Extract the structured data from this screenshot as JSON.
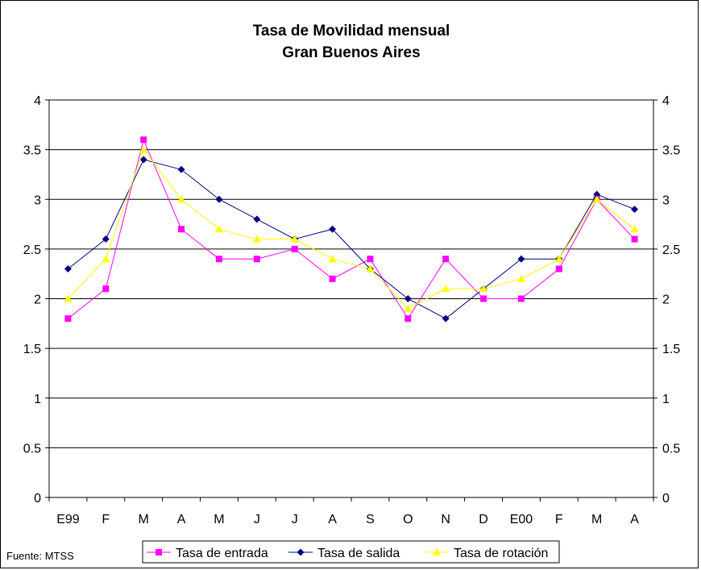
{
  "chart_data": {
    "type": "line",
    "title": "Tasa de Movilidad mensual",
    "subtitle": "Gran Buenos Aires",
    "categories": [
      "E99",
      "F",
      "M",
      "A",
      "M",
      "J",
      "J",
      "A",
      "S",
      "O",
      "N",
      "D",
      "E00",
      "F",
      "M",
      "A"
    ],
    "ylim": [
      0,
      4
    ],
    "yticks": [
      "0",
      "0.5",
      "1",
      "1.5",
      "2",
      "2.5",
      "3",
      "3.5",
      "4"
    ],
    "secondary_y_axis": true,
    "grid": true,
    "legend_position": "bottom",
    "series": [
      {
        "name": "Tasa de entrada",
        "color": "#FF00FF",
        "marker": "square",
        "values": [
          1.8,
          2.1,
          3.6,
          2.7,
          2.4,
          2.4,
          2.5,
          2.2,
          2.4,
          1.8,
          2.4,
          2.0,
          2.0,
          2.3,
          3.0,
          2.6
        ]
      },
      {
        "name": "Tasa de salida",
        "color": "#000080",
        "marker": "diamond",
        "values": [
          2.3,
          2.6,
          3.4,
          3.3,
          3.0,
          2.8,
          2.6,
          2.7,
          2.3,
          2.0,
          1.8,
          2.1,
          2.4,
          2.4,
          3.05,
          2.9
        ]
      },
      {
        "name": "Tasa de rotación",
        "color": "#FFFF00",
        "marker": "triangle",
        "values": [
          2.0,
          2.4,
          3.5,
          3.0,
          2.7,
          2.6,
          2.6,
          2.4,
          2.3,
          1.9,
          2.1,
          2.1,
          2.2,
          2.4,
          3.0,
          2.7
        ]
      }
    ]
  },
  "source_note": "Fuente: MTSS"
}
